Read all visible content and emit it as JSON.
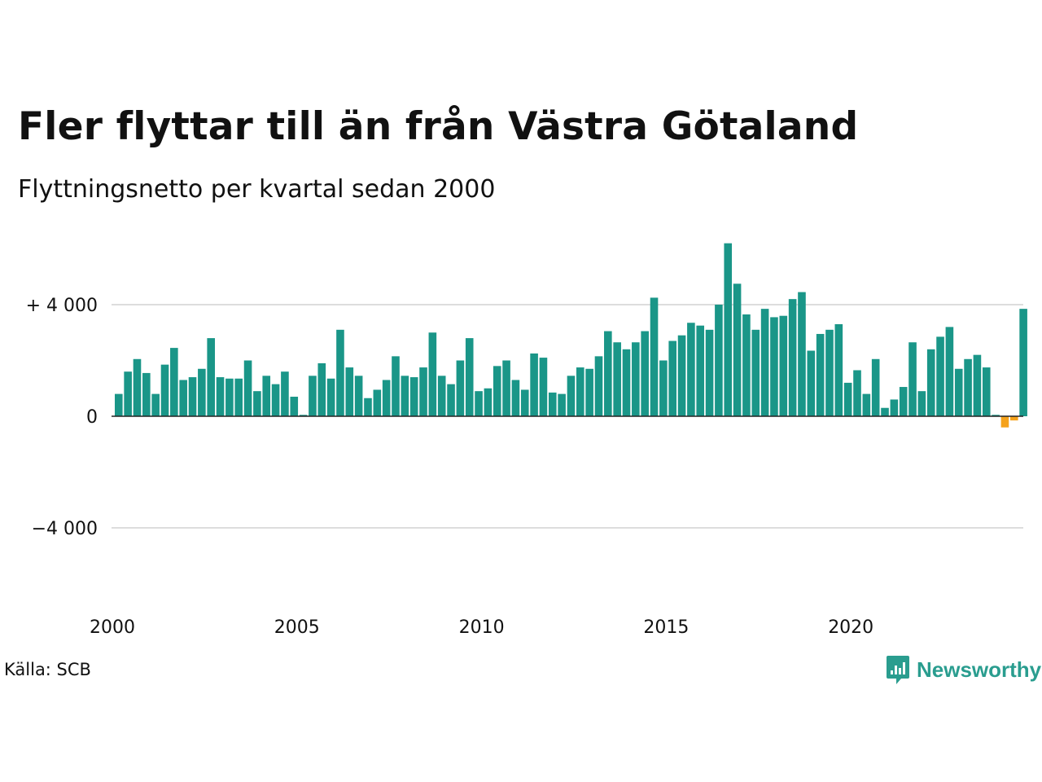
{
  "title": "Fler flyttar till än från Västra Götaland",
  "subtitle": "Flyttningsnetto per kvartal sedan 2000",
  "source": "Källa: SCB",
  "brand": {
    "name": "Newsworthy",
    "icon": "newsworthy-chart-icon",
    "color": "#2a9d8f"
  },
  "colors": {
    "positive": "#1a9688",
    "negative": "#f5a21b",
    "grid": "#dddddd",
    "zero_line": "#222222"
  },
  "chart_data": {
    "type": "bar",
    "title": "Fler flyttar till än från Västra Götaland",
    "subtitle": "Flyttningsnetto per kvartal sedan 2000",
    "xlabel": "",
    "ylabel": "",
    "x_start": 2000,
    "periods_per_year": 4,
    "x_ticks": [
      2000,
      2005,
      2010,
      2015,
      2020
    ],
    "x_tick_labels": [
      "2000",
      "2005",
      "2010",
      "2015",
      "2020"
    ],
    "y_ticks": [
      4000,
      0,
      -4000
    ],
    "y_tick_labels": [
      "+ 4 000",
      "0",
      "−4 000"
    ],
    "ylim": [
      -6500,
      6500
    ],
    "grid": true,
    "values": [
      800,
      1600,
      2050,
      1550,
      800,
      1850,
      2450,
      1300,
      1400,
      1700,
      2800,
      1400,
      1350,
      1350,
      2000,
      900,
      1450,
      1150,
      1600,
      700,
      50,
      1450,
      1900,
      1350,
      3100,
      1750,
      1450,
      650,
      950,
      1300,
      2150,
      1450,
      1400,
      1750,
      3000,
      1450,
      1150,
      2000,
      2800,
      900,
      1000,
      1800,
      2000,
      1300,
      950,
      2250,
      2100,
      850,
      800,
      1450,
      1750,
      1700,
      2150,
      3050,
      2650,
      2400,
      2650,
      3050,
      4250,
      2000,
      2700,
      2900,
      3350,
      3250,
      3100,
      4000,
      6200,
      4750,
      3650,
      3100,
      3850,
      3550,
      3600,
      4200,
      4450,
      2350,
      2950,
      3100,
      3300,
      1200,
      1650,
      800,
      2050,
      300,
      600,
      1050,
      2650,
      900,
      2400,
      2850,
      3200,
      1700,
      2050,
      2200,
      1750,
      50,
      -400,
      -150,
      3850
    ]
  }
}
